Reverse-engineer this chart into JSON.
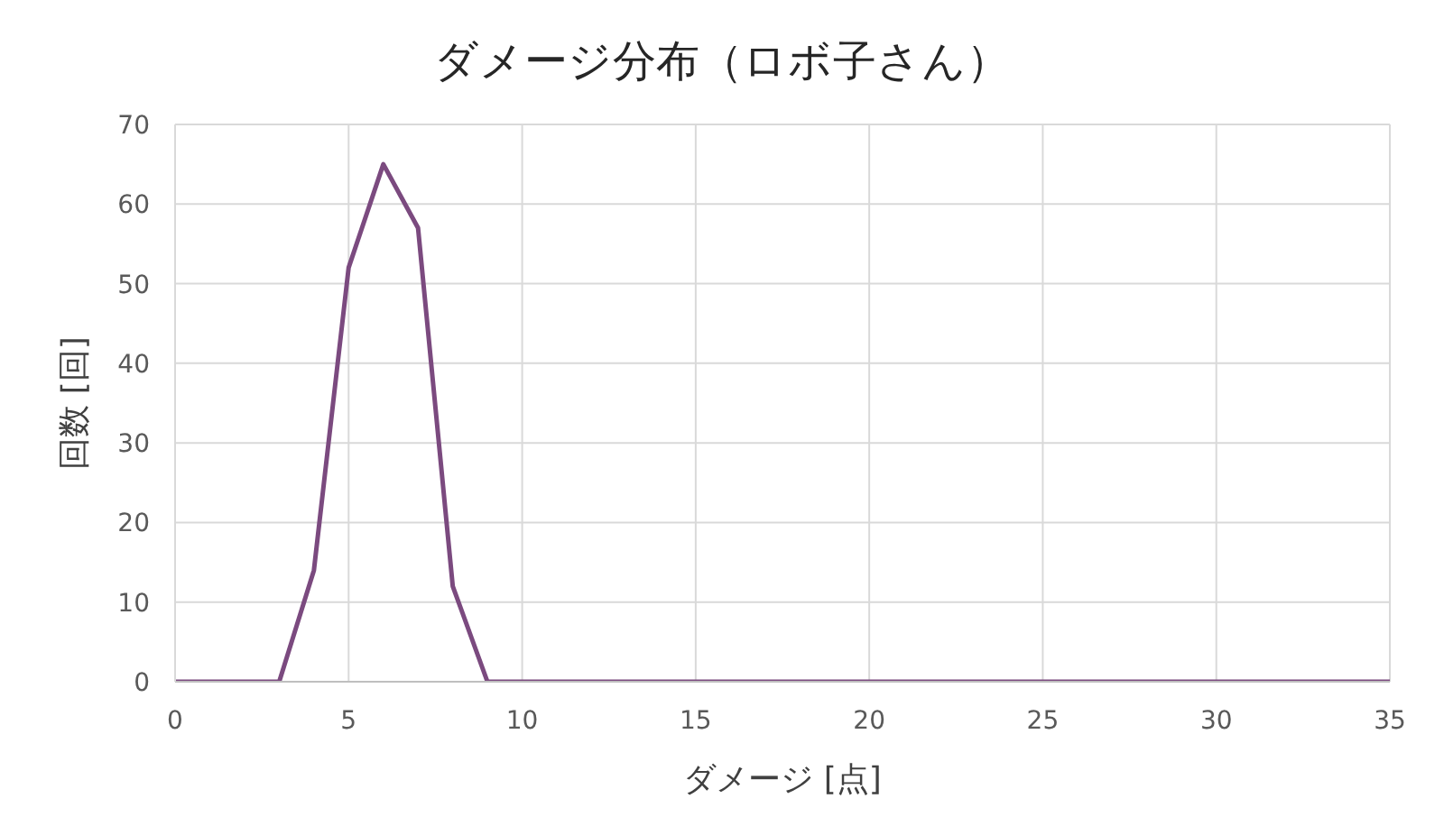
{
  "chart_data": {
    "type": "line",
    "title": "ダメージ分布（ロボ子さん）",
    "xlabel": "ダメージ [点]",
    "ylabel": "回数 [回]",
    "x": [
      0,
      1,
      2,
      3,
      4,
      5,
      6,
      7,
      8,
      9,
      10,
      11,
      12,
      13,
      14,
      15,
      16,
      17,
      18,
      19,
      20,
      21,
      22,
      23,
      24,
      25,
      26,
      27,
      28,
      29,
      30,
      31,
      32,
      33,
      34,
      35
    ],
    "series": [
      {
        "color": "#7b4a7f",
        "values": [
          0,
          0,
          0,
          0,
          14,
          52,
          65,
          57,
          12,
          0,
          0,
          0,
          0,
          0,
          0,
          0,
          0,
          0,
          0,
          0,
          0,
          0,
          0,
          0,
          0,
          0,
          0,
          0,
          0,
          0,
          0,
          0,
          0,
          0,
          0,
          0
        ]
      }
    ],
    "xlim": [
      0,
      35
    ],
    "xticks": [
      0,
      5,
      10,
      15,
      20,
      25,
      30,
      35
    ],
    "ylim": [
      0,
      70
    ],
    "yticks": [
      0,
      10,
      20,
      30,
      40,
      50,
      60,
      70
    ],
    "grid": true,
    "line_style": "solid"
  }
}
